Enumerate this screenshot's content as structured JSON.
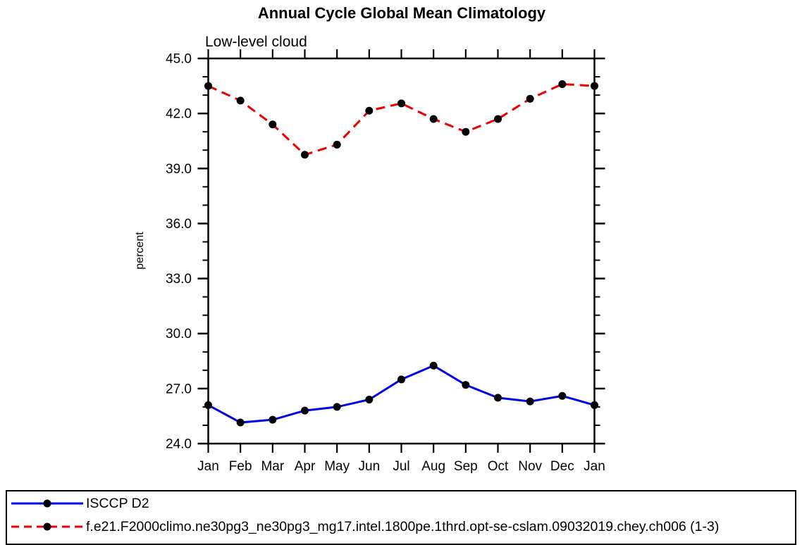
{
  "page": {
    "background": "#ffffff"
  },
  "chart_data": {
    "type": "line",
    "title": "Annual Cycle Global Mean Climatology",
    "subtitle": "Low-level cloud",
    "ylabel": "percent",
    "categories": [
      "Jan",
      "Feb",
      "Mar",
      "Apr",
      "May",
      "Jun",
      "Jul",
      "Aug",
      "Sep",
      "Oct",
      "Nov",
      "Dec",
      "Jan"
    ],
    "ylim": [
      24.0,
      45.0
    ],
    "ytick_major_step": 3.0,
    "ytick_minor_step": 1.0,
    "ytick_labels": [
      "24.0",
      "27.0",
      "30.0",
      "33.0",
      "36.0",
      "39.0",
      "42.0",
      "45.0"
    ],
    "grid": false,
    "legend_position": "bottom-box",
    "axis_color": "#000000",
    "series": [
      {
        "name": "ISCCP D2",
        "color": "#0000ee",
        "line_style": "solid",
        "marker": "filled-circle",
        "marker_color": "#000000",
        "values": [
          26.1,
          25.15,
          25.3,
          25.8,
          26.0,
          26.4,
          27.5,
          28.25,
          27.2,
          26.5,
          26.3,
          26.6,
          26.1
        ]
      },
      {
        "name": "f.e21.F2000climo.ne30pg3_ne30pg3_mg17.intel.1800pe.1thrd.opt-se-cslam.09032019.chey.ch006 (1-3)",
        "color": "#ee0000",
        "line_style": "dashed",
        "marker": "filled-circle",
        "marker_color": "#000000",
        "values": [
          43.5,
          42.7,
          41.4,
          39.75,
          40.3,
          42.15,
          42.55,
          41.7,
          41.0,
          41.7,
          42.8,
          43.6,
          43.5
        ]
      }
    ]
  }
}
